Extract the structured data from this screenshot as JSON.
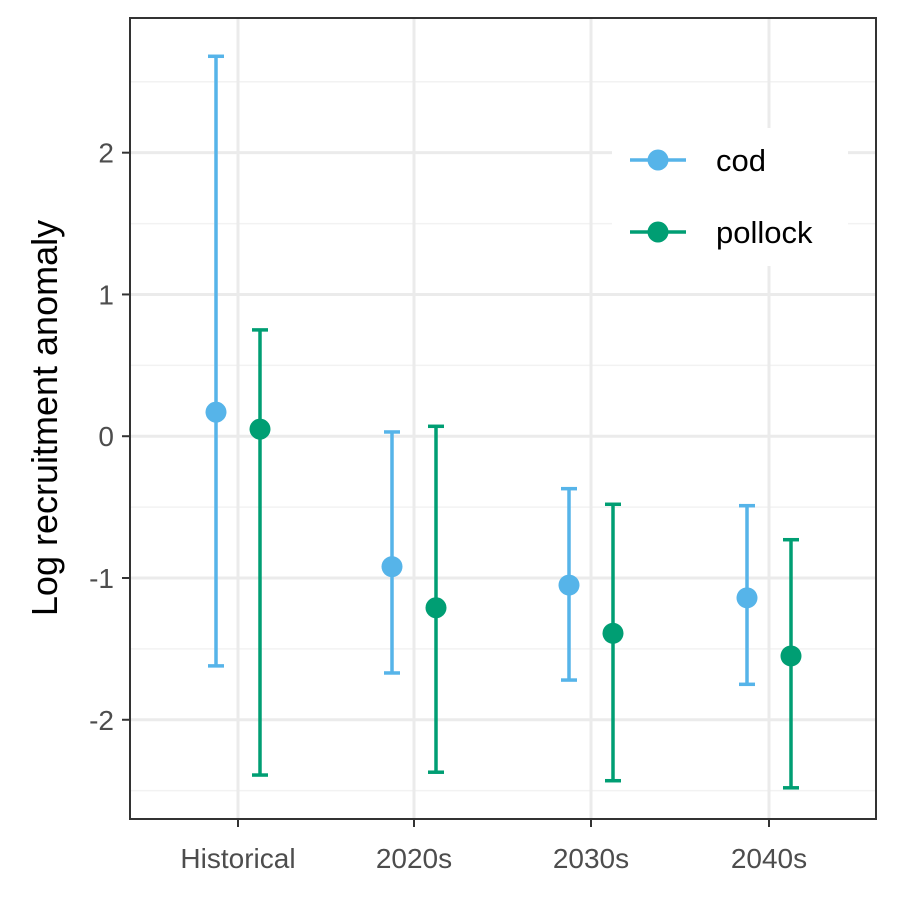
{
  "chart_data": {
    "type": "scatter",
    "subtype": "point-with-errorbars",
    "title": "",
    "xlabel": "",
    "ylabel": "Log recruitment anomaly",
    "categories": [
      "Historical",
      "2020s",
      "2030s",
      "2040s"
    ],
    "ylim": [
      -2.7,
      2.95
    ],
    "yticks": [
      -2,
      -1,
      0,
      1,
      2
    ],
    "grid": true,
    "legend_position": "top-right",
    "series": [
      {
        "name": "cod",
        "color": "#56B4E9",
        "values": [
          0.17,
          -0.92,
          -1.05,
          -1.14
        ],
        "lower": [
          -1.62,
          -1.67,
          -1.72,
          -1.75
        ],
        "upper": [
          2.68,
          0.03,
          -0.37,
          -0.49
        ]
      },
      {
        "name": "pollock",
        "color": "#009E73",
        "values": [
          0.05,
          -1.21,
          -1.39,
          -1.55
        ],
        "lower": [
          -2.39,
          -2.37,
          -2.43,
          -2.48
        ],
        "upper": [
          0.75,
          0.07,
          -0.48,
          -0.73
        ]
      }
    ]
  }
}
